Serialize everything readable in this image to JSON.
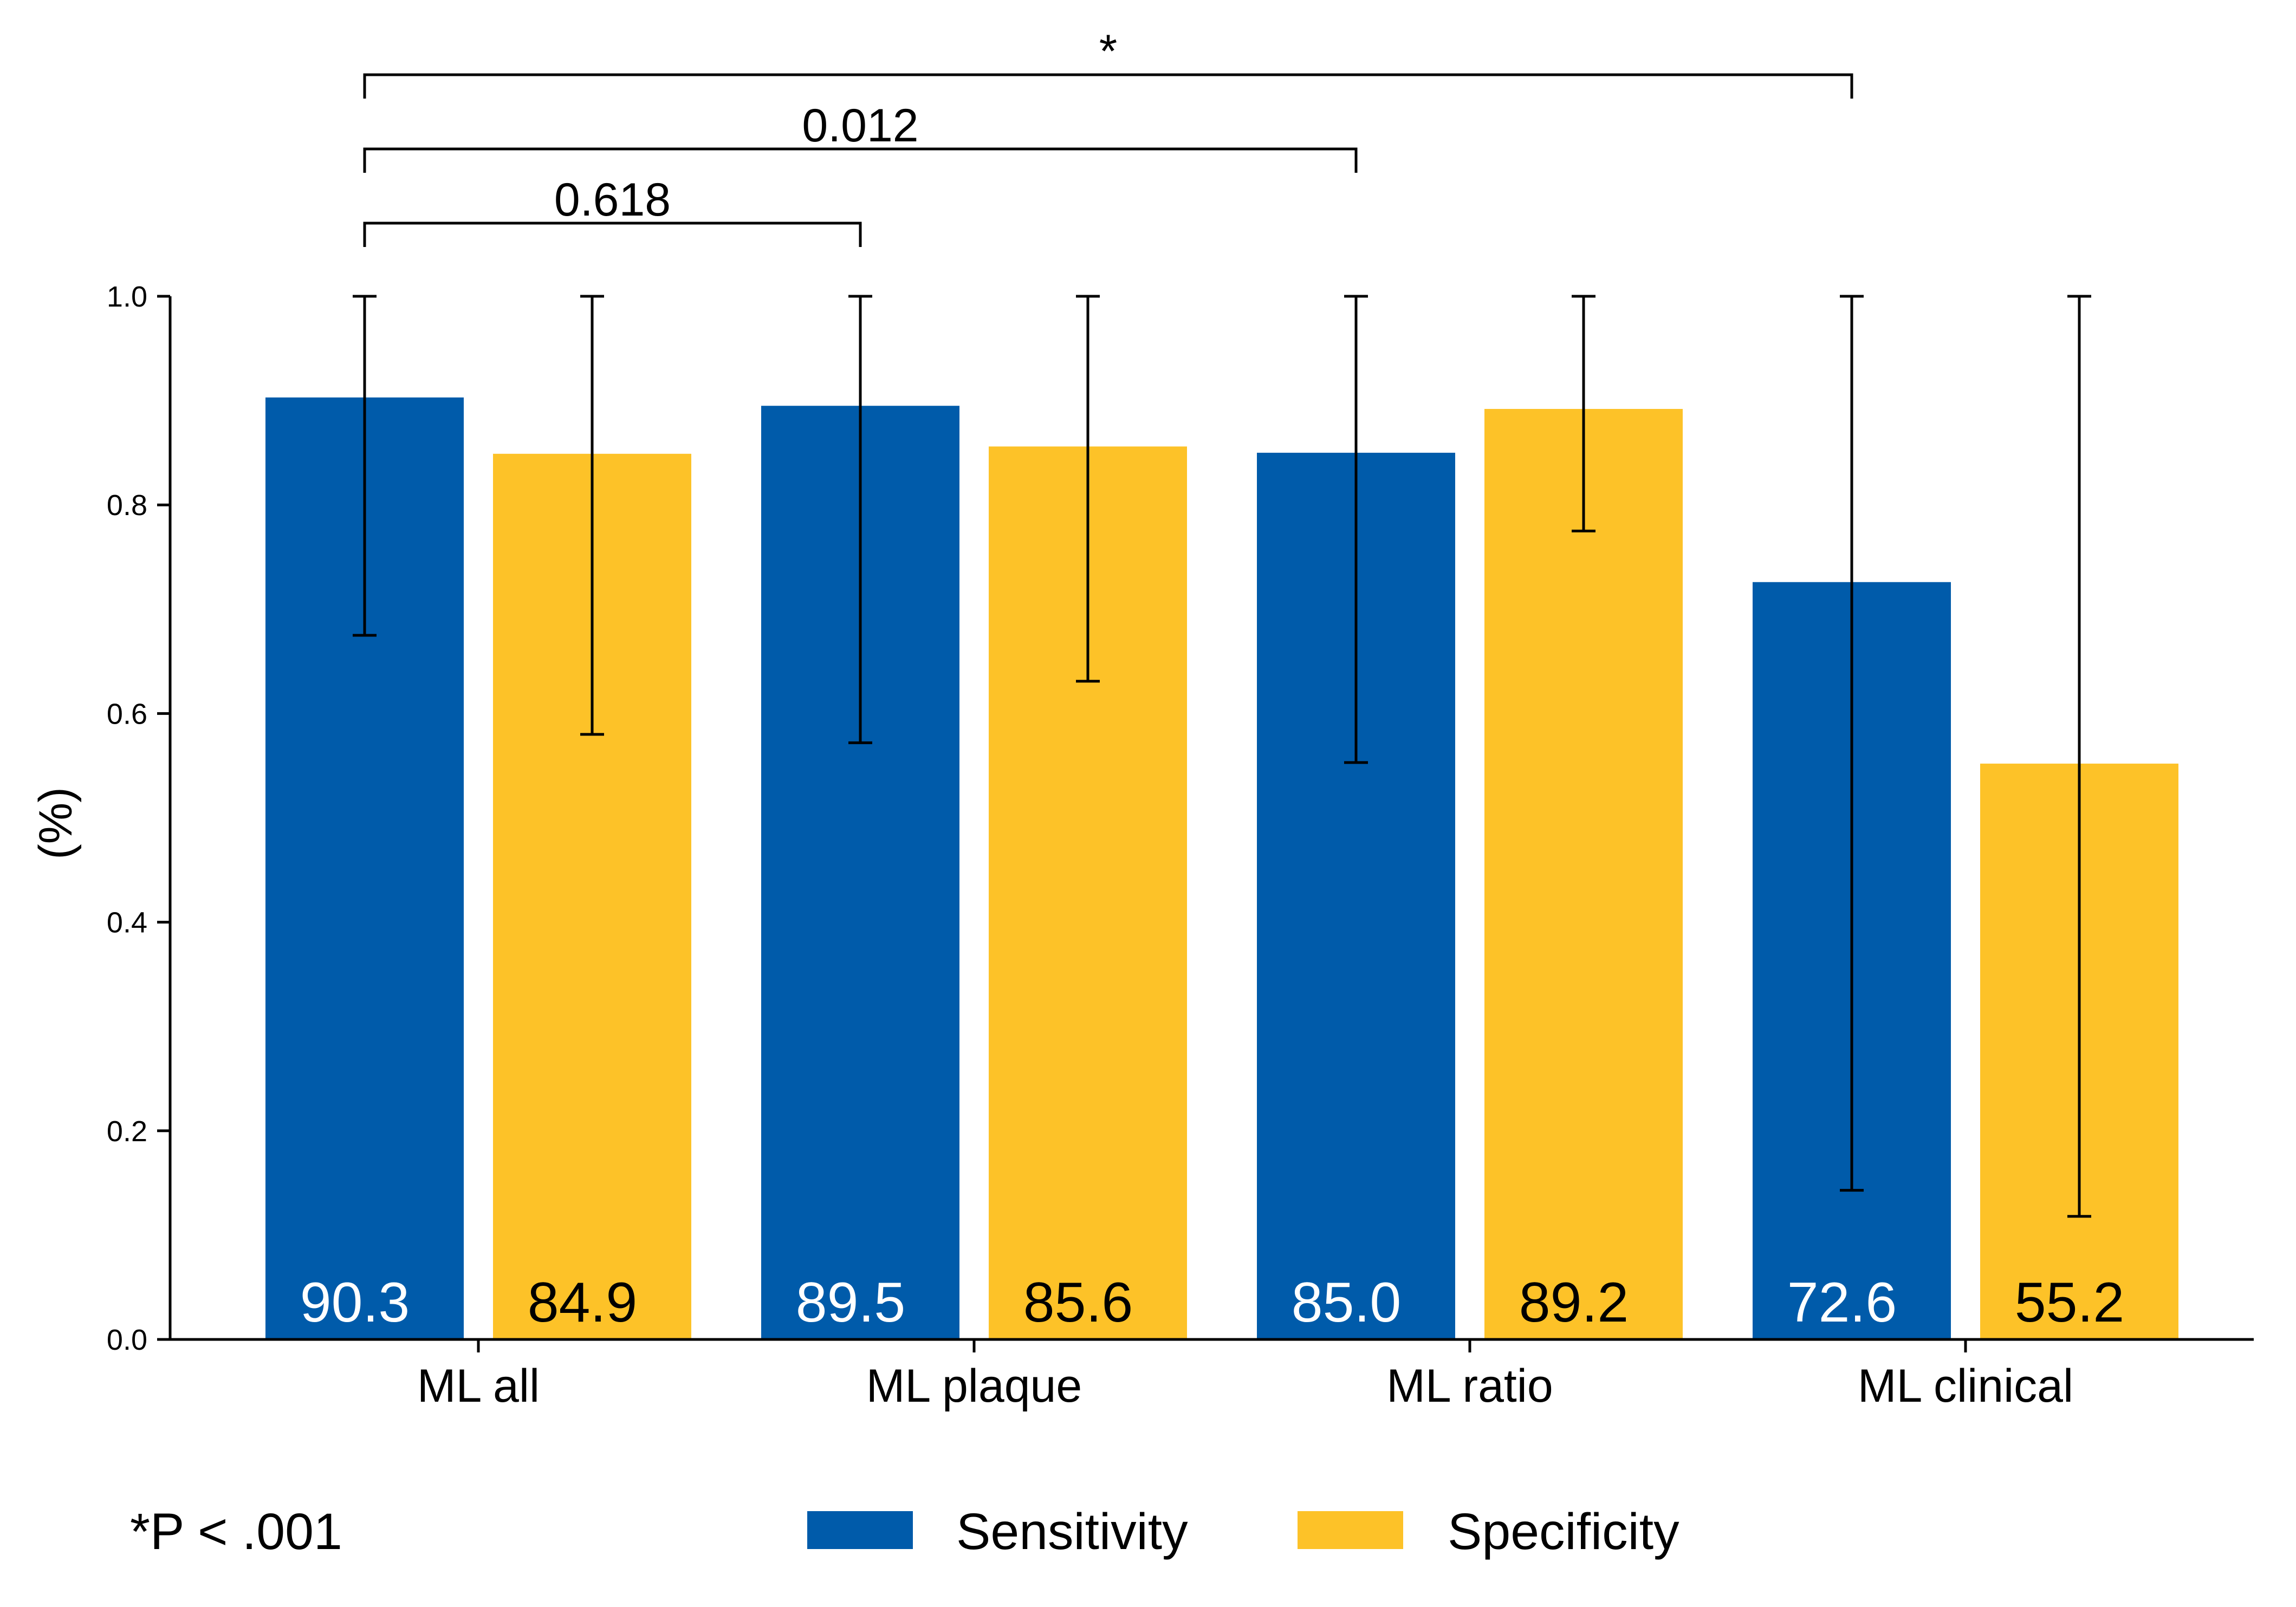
{
  "chart_data": {
    "type": "bar",
    "ylabel": "(%)",
    "ylim": [
      0,
      1.0
    ],
    "yticks": [
      "0.0",
      "0.2",
      "0.4",
      "0.6",
      "0.8",
      "1.0"
    ],
    "categories": [
      "ML all",
      "ML plaque",
      "ML ratio",
      "ML clinical"
    ],
    "series": [
      {
        "name": "Sensitivity",
        "color": "#005BAA",
        "label_color": "#ffffff",
        "values": [
          0.903,
          0.895,
          0.85,
          0.726
        ],
        "labels": [
          "90.3",
          "89.5",
          "85.0",
          "72.6"
        ],
        "ci_low": [
          0.675,
          0.572,
          0.553,
          0.143
        ],
        "ci_high": [
          1.0,
          1.0,
          1.0,
          1.0
        ]
      },
      {
        "name": "Specificity",
        "color": "#FDC228",
        "label_color": "#000000",
        "values": [
          0.849,
          0.856,
          0.892,
          0.552
        ],
        "labels": [
          "84.9",
          "85.6",
          "89.2",
          "55.2"
        ],
        "ci_low": [
          0.58,
          0.631,
          0.775,
          0.118
        ],
        "ci_high": [
          1.0,
          1.0,
          1.0,
          1.0
        ]
      }
    ],
    "comparisons": [
      {
        "from": 0,
        "to": 1,
        "label": "0.618"
      },
      {
        "from": 0,
        "to": 2,
        "label": "0.012"
      },
      {
        "from": 0,
        "to": 3,
        "label": "*"
      }
    ],
    "legend_position": "bottom-center",
    "footnote": "*P < .001",
    "grid": false
  }
}
